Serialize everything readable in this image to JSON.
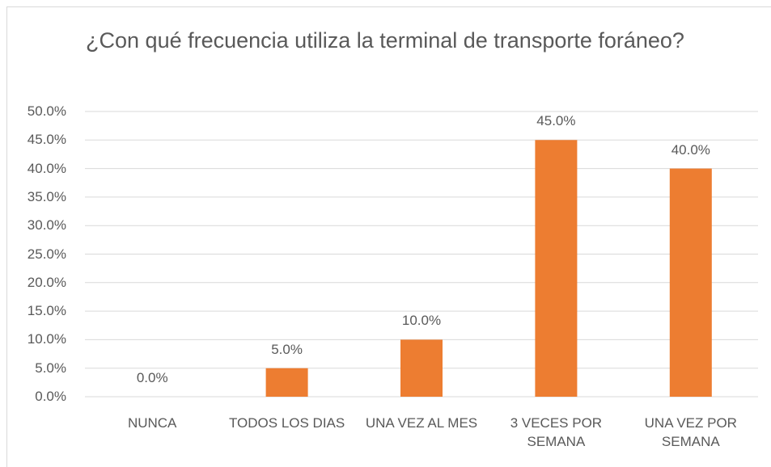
{
  "chart_data": {
    "type": "bar",
    "title": "¿Con qué frecuencia utiliza la terminal de transporte foráneo?",
    "categories": [
      "NUNCA",
      "TODOS LOS DIAS",
      "UNA VEZ AL MES",
      "3 VECES POR SEMANA",
      "UNA VEZ POR SEMANA"
    ],
    "values": [
      0,
      5,
      10,
      45,
      40
    ],
    "value_labels": [
      "0.0%",
      "5.0%",
      "10.0%",
      "45.0%",
      "40.0%"
    ],
    "color": "#ed7d31",
    "ylim": [
      0,
      50
    ],
    "yticks": [
      {
        "value": 0,
        "label": "0.0%"
      },
      {
        "value": 5,
        "label": "5.0%"
      },
      {
        "value": 10,
        "label": "10.0%"
      },
      {
        "value": 15,
        "label": "15.0%"
      },
      {
        "value": 20,
        "label": "20.0%"
      },
      {
        "value": 25,
        "label": "25.0%"
      },
      {
        "value": 30,
        "label": "30.0%"
      },
      {
        "value": 35,
        "label": "35.0%"
      },
      {
        "value": 40,
        "label": "40.0%"
      },
      {
        "value": 45,
        "label": "45.0%"
      },
      {
        "value": 50,
        "label": "50.0%"
      }
    ],
    "grid": true
  }
}
